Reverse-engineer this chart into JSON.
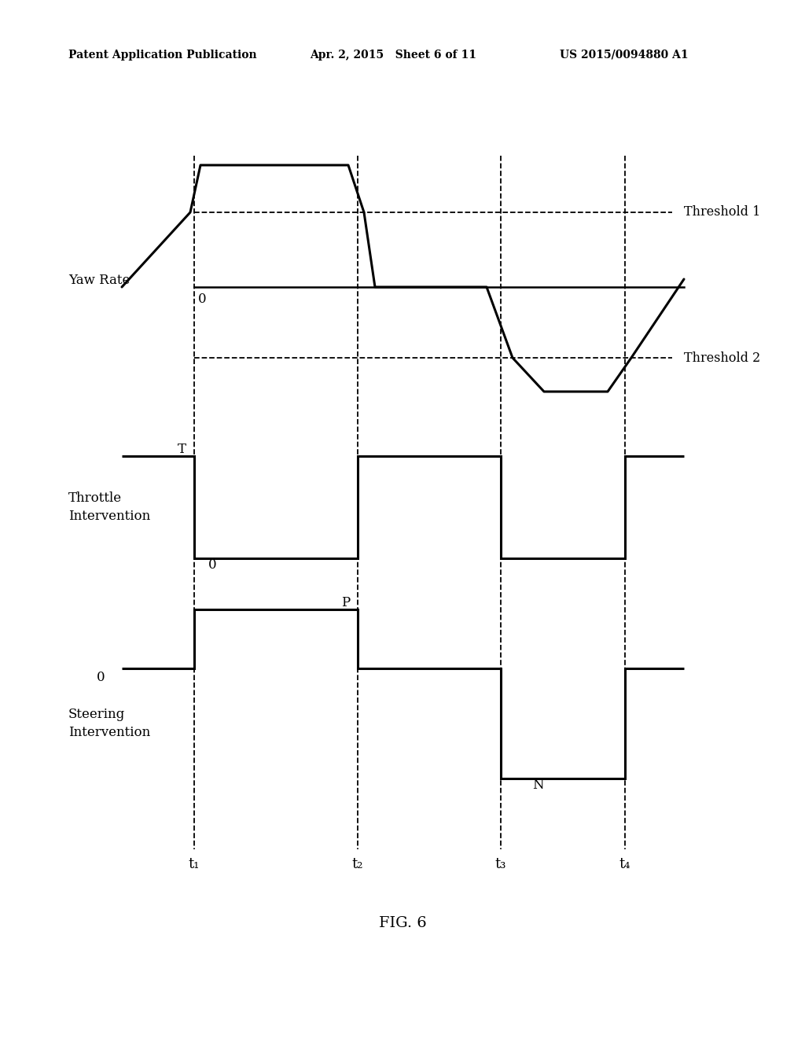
{
  "background_color": "#ffffff",
  "header_left": "Patent Application Publication",
  "header_center": "Apr. 2, 2015   Sheet 6 of 11",
  "header_right": "US 2015/0094880 A1",
  "figure_label": "FIG. 6",
  "t_labels": [
    "t₁",
    "t₂",
    "t₃",
    "t₄"
  ],
  "yaw_label": "Yaw Rate",
  "yaw_zero_label": "0",
  "throttle_label_line1": "Throttle",
  "throttle_label_line2": "Intervention",
  "throttle_T_label": "T",
  "throttle_0_label": "0",
  "steering_label_line1": "Steering",
  "steering_label_line2": "Intervention",
  "steering_P_label": "P",
  "steering_N_label": "N",
  "steering_0_label": "0",
  "threshold1_label": "Threshold 1",
  "threshold2_label": "Threshold 2"
}
